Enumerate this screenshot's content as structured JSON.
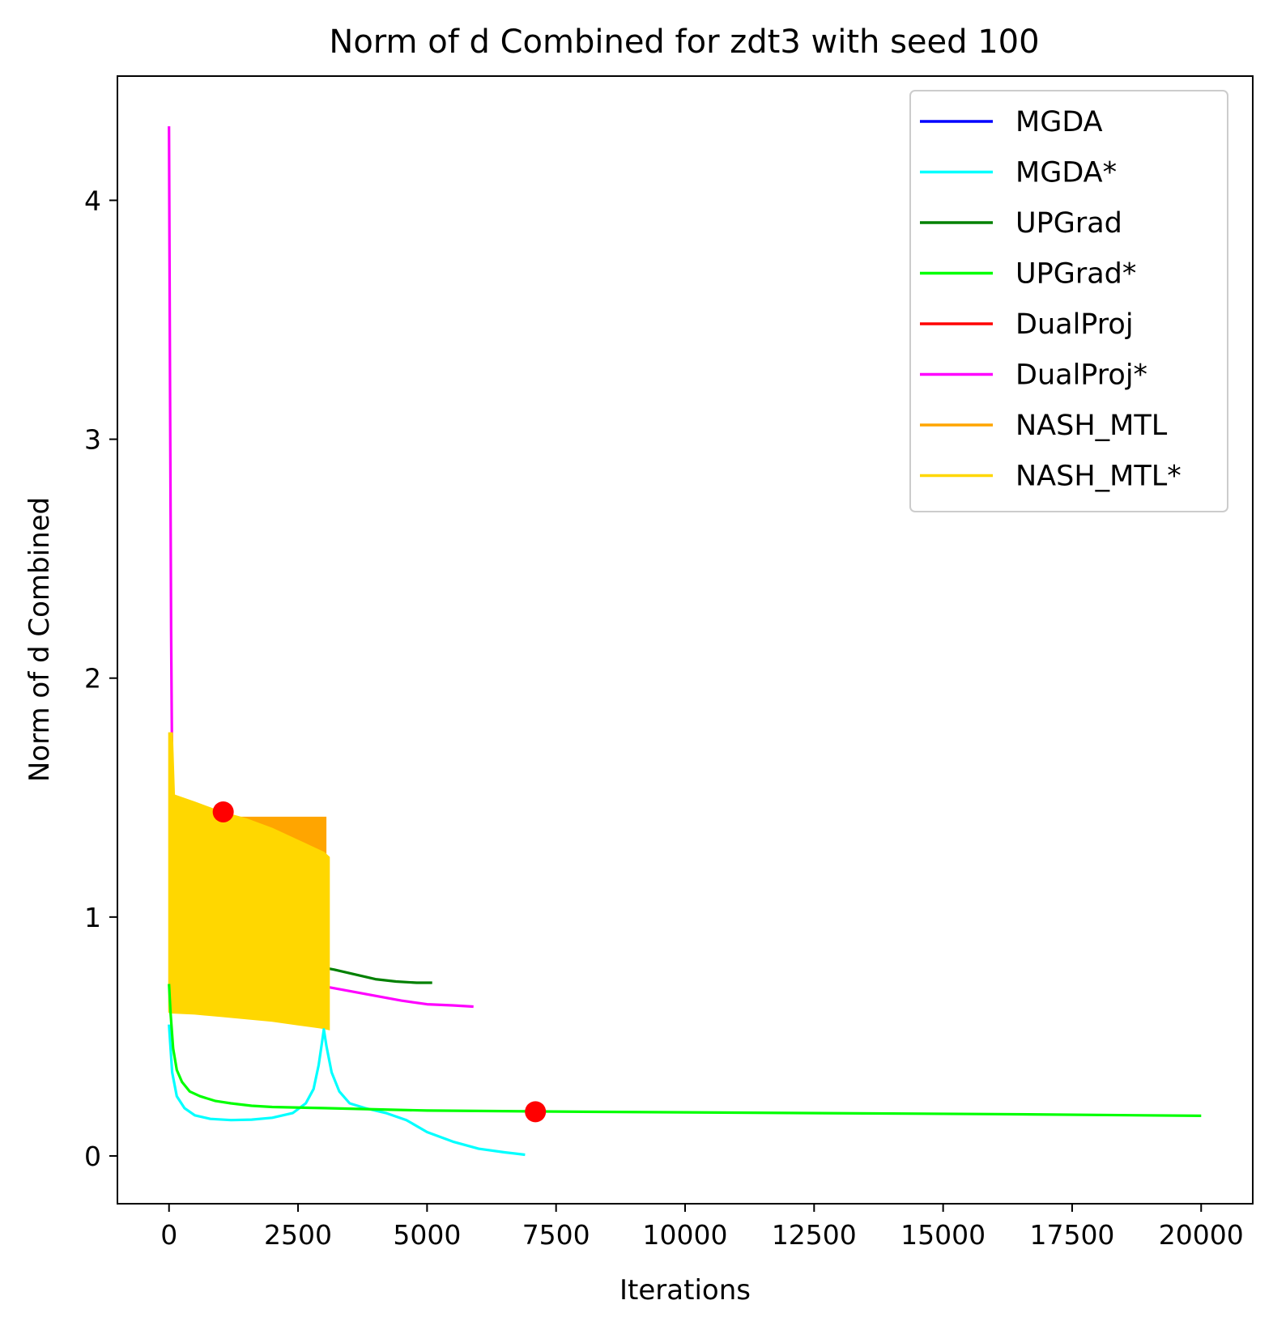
{
  "chart_data": {
    "type": "line",
    "title": "Norm of d Combined for zdt3 with seed 100",
    "xlabel": "Iterations",
    "ylabel": "Norm of d Combined",
    "xlim": [
      -1000,
      21000
    ],
    "ylim": [
      -0.2,
      4.52
    ],
    "xticks": [
      0,
      2500,
      5000,
      7500,
      10000,
      12500,
      15000,
      17500,
      20000
    ],
    "xtick_labels": [
      "0",
      "2500",
      "5000",
      "7500",
      "10000",
      "12500",
      "15000",
      "17500",
      "20000"
    ],
    "yticks": [
      0,
      1,
      2,
      3,
      4
    ],
    "ytick_labels": [
      "0",
      "1",
      "2",
      "3",
      "4"
    ],
    "legend_position": "upper right",
    "grid": false,
    "series": [
      {
        "name": "MGDA",
        "color": "#0000ff",
        "x": [
          0,
          40
        ],
        "y": [
          1.0,
          1.0
        ]
      },
      {
        "name": "MGDA*",
        "color": "#00ffff",
        "x": [
          0,
          60,
          150,
          300,
          500,
          800,
          1200,
          1600,
          2000,
          2400,
          2650,
          2800,
          2900,
          2960,
          3000,
          3050,
          3150,
          3300,
          3500,
          3800,
          4200,
          4600,
          5000,
          5500,
          6000,
          6500,
          6900
        ],
        "y": [
          0.55,
          0.35,
          0.25,
          0.2,
          0.17,
          0.155,
          0.15,
          0.152,
          0.16,
          0.18,
          0.22,
          0.28,
          0.38,
          0.47,
          0.53,
          0.46,
          0.35,
          0.27,
          0.22,
          0.2,
          0.18,
          0.15,
          0.1,
          0.06,
          0.03,
          0.015,
          0.005
        ]
      },
      {
        "name": "UPGrad",
        "color": "#008000",
        "x": [
          2950,
          3200,
          3600,
          4000,
          4400,
          4800,
          5100
        ],
        "y": [
          0.79,
          0.78,
          0.76,
          0.74,
          0.73,
          0.725,
          0.725
        ]
      },
      {
        "name": "UPGrad*",
        "color": "#00ff00",
        "x": [
          0,
          30,
          80,
          150,
          250,
          400,
          600,
          900,
          1200,
          1600,
          2000,
          3000,
          5000,
          8000,
          12000,
          16000,
          20000
        ],
        "y": [
          0.72,
          0.6,
          0.45,
          0.36,
          0.31,
          0.27,
          0.25,
          0.23,
          0.22,
          0.21,
          0.205,
          0.2,
          0.19,
          0.185,
          0.18,
          0.175,
          0.168
        ]
      },
      {
        "name": "DualProj",
        "color": "#ff0000",
        "x": [
          0,
          20
        ],
        "y": [
          1.4,
          1.4
        ]
      },
      {
        "name": "DualProj*",
        "color": "#ff00ff",
        "x": [
          0,
          20,
          40,
          60,
          80,
          100,
          3000,
          3500,
          4000,
          4500,
          5000,
          5500,
          5900
        ],
        "y": [
          4.31,
          3.2,
          2.2,
          1.6,
          1.2,
          0.95,
          0.71,
          0.69,
          0.67,
          0.65,
          0.635,
          0.63,
          0.625
        ],
        "note_point": null
      },
      {
        "name": "NASH_MTL",
        "color": "#ffa500",
        "x_start": 0,
        "x_end": 3050,
        "upper": 1.42,
        "lower": 0.6
      },
      {
        "name": "NASH_MTL*",
        "color": "#ffd700",
        "x_start": 0,
        "x_end": 3100,
        "upper_x": [
          0,
          60,
          100,
          500,
          1000,
          1500,
          2000,
          2500,
          3000,
          3100
        ],
        "upper_y": [
          1.77,
          1.77,
          1.51,
          1.48,
          1.44,
          1.41,
          1.37,
          1.32,
          1.27,
          1.25
        ],
        "lower_x": [
          0,
          500,
          1000,
          1500,
          2000,
          2500,
          3000,
          3100
        ],
        "lower_y": [
          0.6,
          0.595,
          0.585,
          0.575,
          0.565,
          0.55,
          0.535,
          0.53
        ]
      }
    ],
    "markers": [
      {
        "x": 1050,
        "y": 1.44,
        "color": "#ff0000"
      },
      {
        "x": 7100,
        "y": 0.185,
        "color": "#ff0000"
      }
    ]
  }
}
